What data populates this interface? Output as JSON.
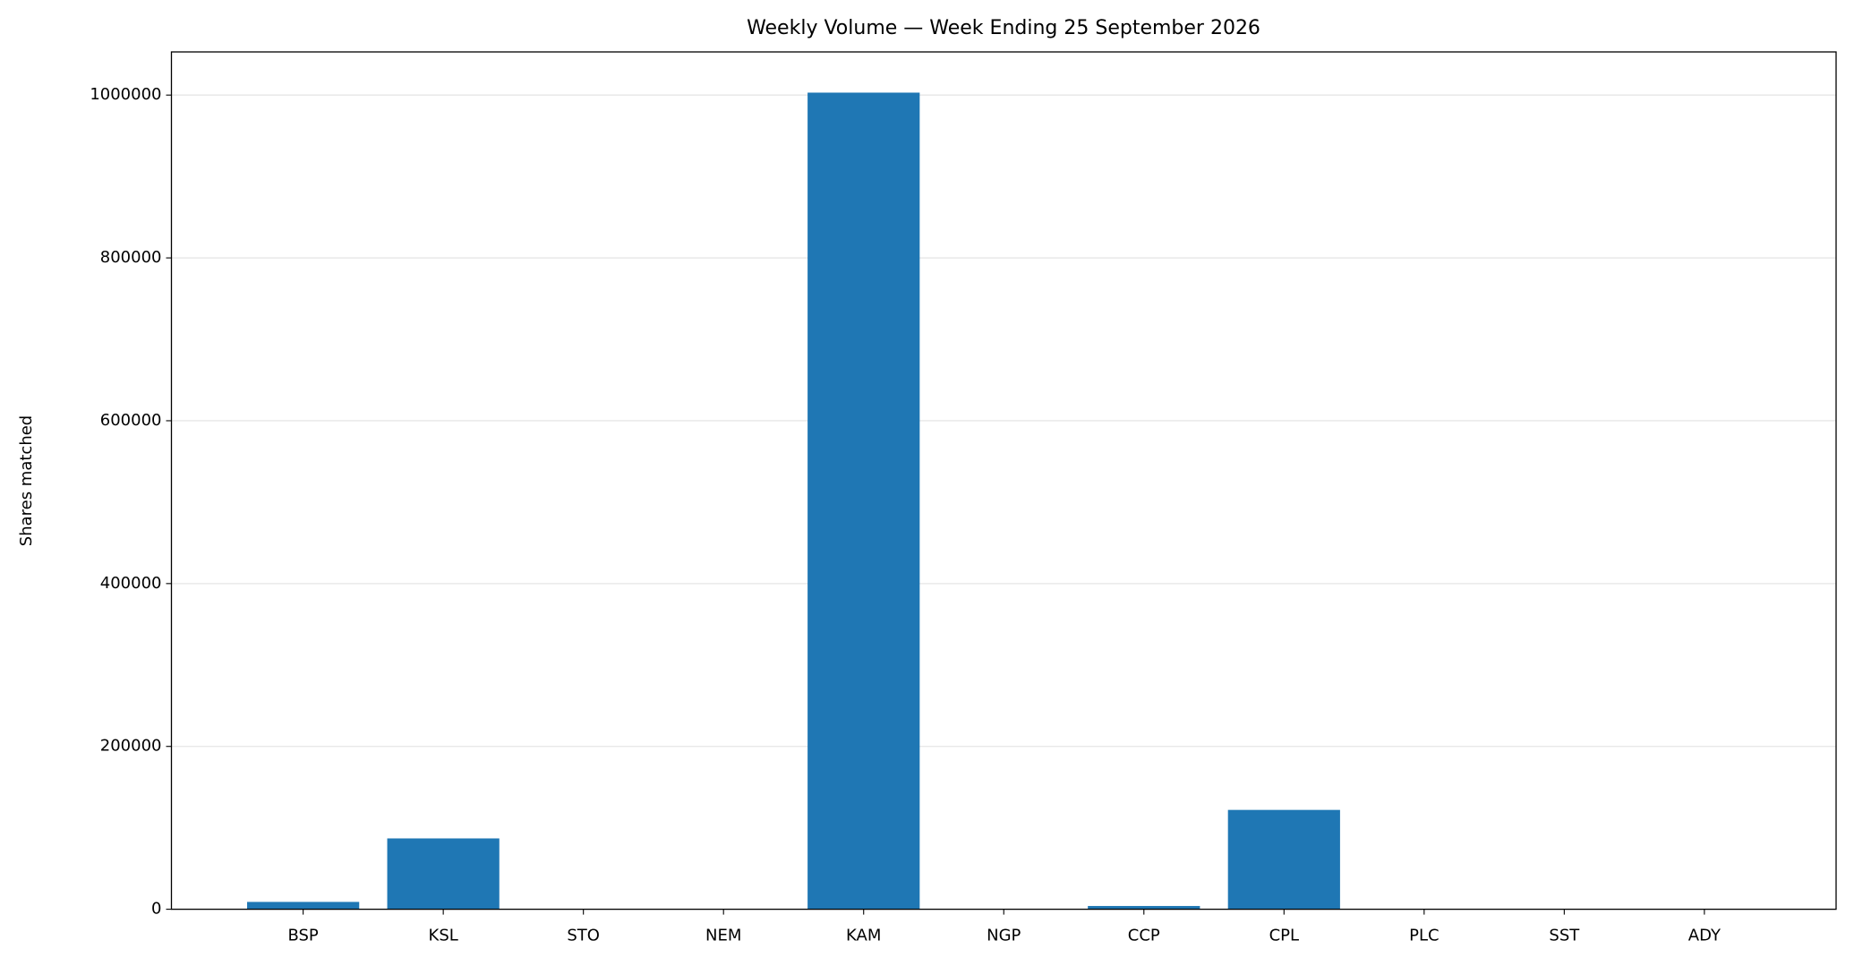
{
  "chart_data": {
    "type": "bar",
    "title": "Weekly Volume — Week Ending 25 September 2026",
    "ylabel": "Shares matched",
    "categories": [
      "BSP",
      "KSL",
      "STO",
      "NEM",
      "KAM",
      "NGP",
      "CCP",
      "CPL",
      "PLC",
      "SST",
      "ADY"
    ],
    "values": [
      9000,
      87000,
      0,
      0,
      1003000,
      0,
      4000,
      122000,
      0,
      0,
      0
    ],
    "color": "#1f77b4",
    "ylim": [
      0,
      1053000
    ],
    "yticks": [
      0,
      200000,
      400000,
      600000,
      800000,
      1000000
    ],
    "grid": true
  }
}
